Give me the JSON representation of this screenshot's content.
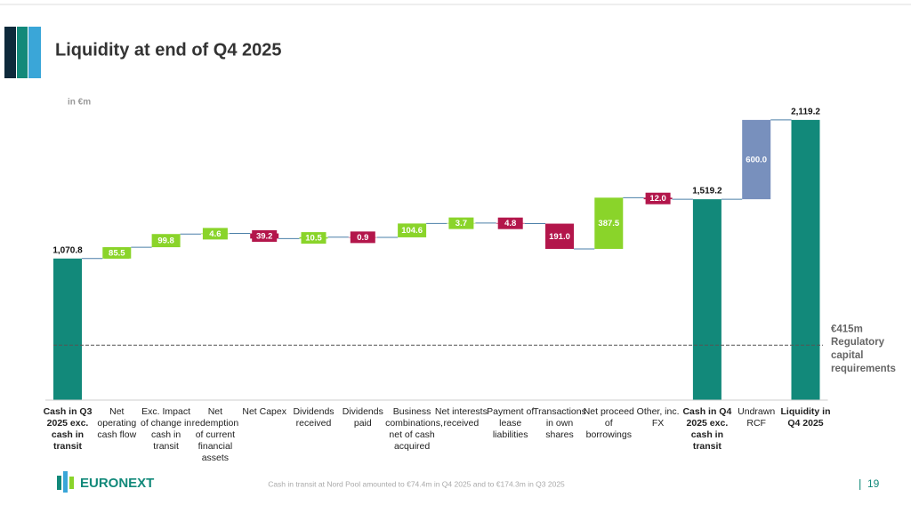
{
  "slide": {
    "logo": "EURONEXT",
    "footnote": "Cash in transit at Nord Pool amounted to €74.4m in Q4 2025 and to €174.3m in Q3 2025",
    "page_number": "19"
  },
  "chart_data": {
    "type": "waterfall",
    "title": "Liquidity at end of Q4 2025",
    "unit_label": "in €m",
    "categories": [
      "Cash in Q3 2025 exc. cash in transit",
      "Net operating cash flow",
      "Exc. Impact of change in cash in transit",
      "Net redemption of current financial assets",
      "Net Capex",
      "Dividends received",
      "Dividends paid",
      "Business combinations, net of cash acquired",
      "Net interests received",
      "Payment of lease liabilities",
      "Transactions in own shares",
      "Net proceed of borrowings",
      "Other, inc. FX",
      "Cash in Q4 2025 exc. cash in transit",
      "Undrawn RCF",
      "Liquidity in Q4 2025"
    ],
    "measures": [
      "absolute",
      "relative",
      "relative",
      "relative",
      "relative",
      "relative",
      "relative",
      "relative",
      "relative",
      "relative",
      "relative",
      "relative",
      "relative",
      "absolute",
      "relative",
      "absolute"
    ],
    "values": [
      1070.8,
      85.5,
      99.8,
      4.6,
      -39.2,
      10.5,
      -0.9,
      104.6,
      3.7,
      -4.8,
      -191.0,
      387.5,
      -12.0,
      1519.2,
      600.0,
      2119.2
    ],
    "value_labels": [
      "1,070.8",
      "85.5",
      "99.8",
      "4.6",
      "39.2",
      "10.5",
      "0.9",
      "104.6",
      "3.7",
      "4.8",
      "191.0",
      "387.5",
      "12.0",
      "1,519.2",
      "600.0",
      "2,119.2"
    ],
    "colors": [
      "#12897a",
      "#8ad42a",
      "#8ad42a",
      "#8ad42a",
      "#b3164b",
      "#8ad42a",
      "#b3164b",
      "#8ad42a",
      "#8ad42a",
      "#b3164b",
      "#b3164b",
      "#8ad42a",
      "#b3164b",
      "#12897a",
      "#7890bd",
      "#12897a"
    ],
    "ylim": [
      0,
      2300
    ],
    "reference_line": {
      "value": 415,
      "label": "€415m",
      "text": "Regulatory capital requirements"
    }
  }
}
